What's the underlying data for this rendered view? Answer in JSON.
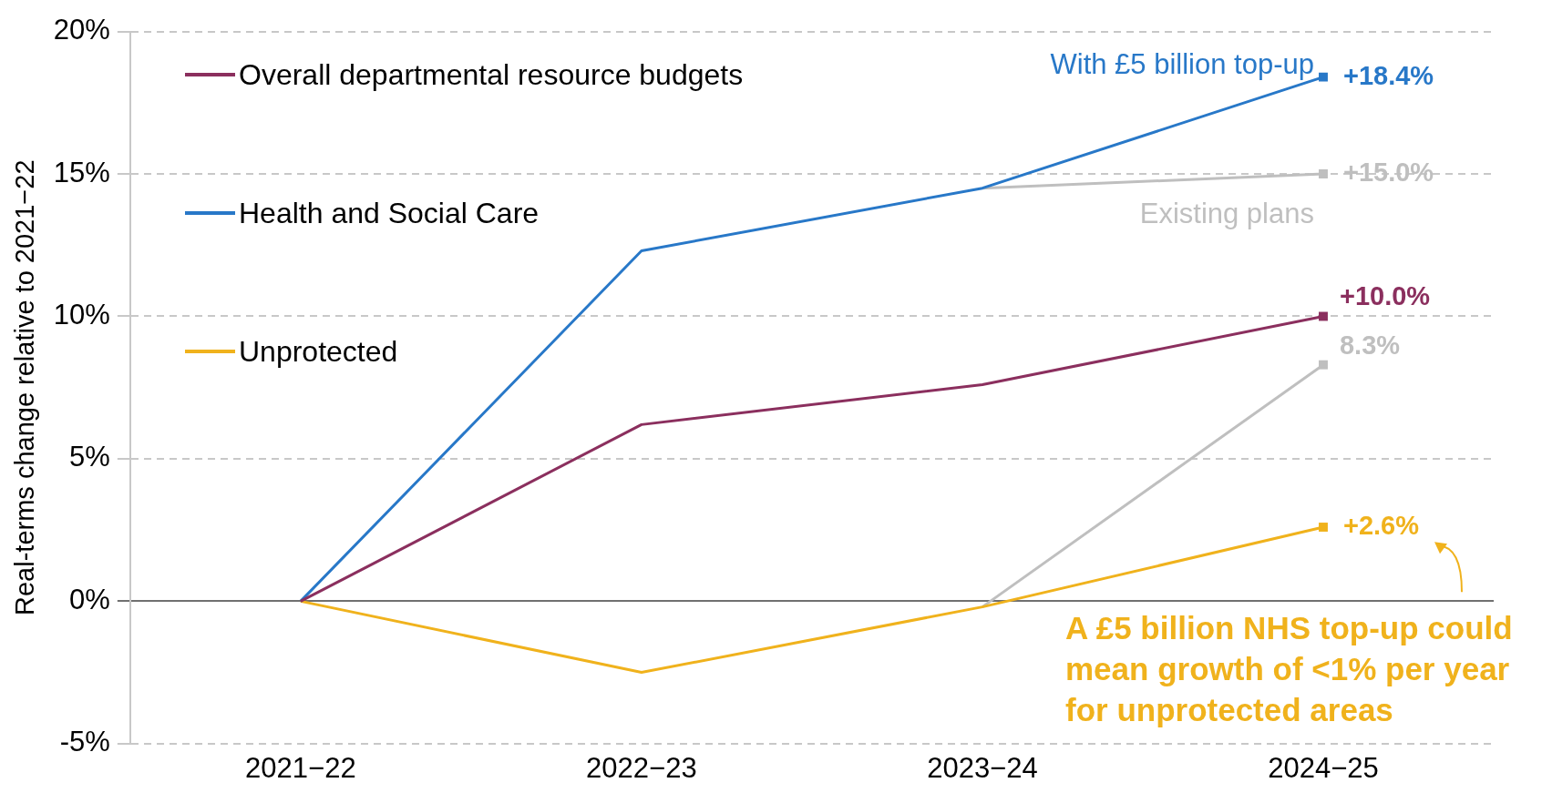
{
  "chart_data": {
    "type": "line",
    "ylabel": "Real-terms change relative to 2021−22",
    "categories": [
      "2021−22",
      "2022−23",
      "2023−24",
      "2024−25"
    ],
    "series": [
      {
        "name": "Overall departmental resource budgets",
        "color": "#8b2f5e",
        "values": [
          0,
          6.2,
          7.6,
          10.0
        ],
        "value_labels": [
          null,
          null,
          null,
          "+10.0%"
        ]
      },
      {
        "name": "Health and Social Care",
        "color": "#2878c8",
        "values": [
          0,
          12.3,
          14.5,
          18.4
        ],
        "value_labels": [
          null,
          null,
          null,
          "+18.4%"
        ]
      },
      {
        "name": "Unprotected",
        "color": "#f0b21c",
        "values": [
          0,
          -2.5,
          -0.2,
          2.6
        ],
        "value_labels": [
          null,
          null,
          null,
          "+2.6%"
        ]
      },
      {
        "color": "#bfbfbf",
        "values": [
          null,
          null,
          14.5,
          15.0
        ],
        "value_labels": [
          null,
          null,
          null,
          "+15.0%"
        ]
      },
      {
        "color": "#bfbfbf",
        "values": [
          null,
          null,
          -0.2,
          8.3
        ],
        "value_labels": [
          null,
          null,
          null,
          "8.3%"
        ]
      }
    ],
    "ylim": [
      -5,
      20
    ],
    "yticks": [
      {
        "value": -5,
        "label": "-5%"
      },
      {
        "value": 0,
        "label": "0%"
      },
      {
        "value": 5,
        "label": "5%"
      },
      {
        "value": 10,
        "label": "10%"
      },
      {
        "value": 15,
        "label": "15%"
      },
      {
        "value": 20,
        "label": "20%"
      }
    ],
    "grid": "y",
    "legend": "top left",
    "line_style": "solid",
    "annotations": [
      "With £5 billion top-up",
      "Existing plans",
      "A £5 billion NHS top-up could mean growth of <1% per year for unprotected areas"
    ]
  }
}
